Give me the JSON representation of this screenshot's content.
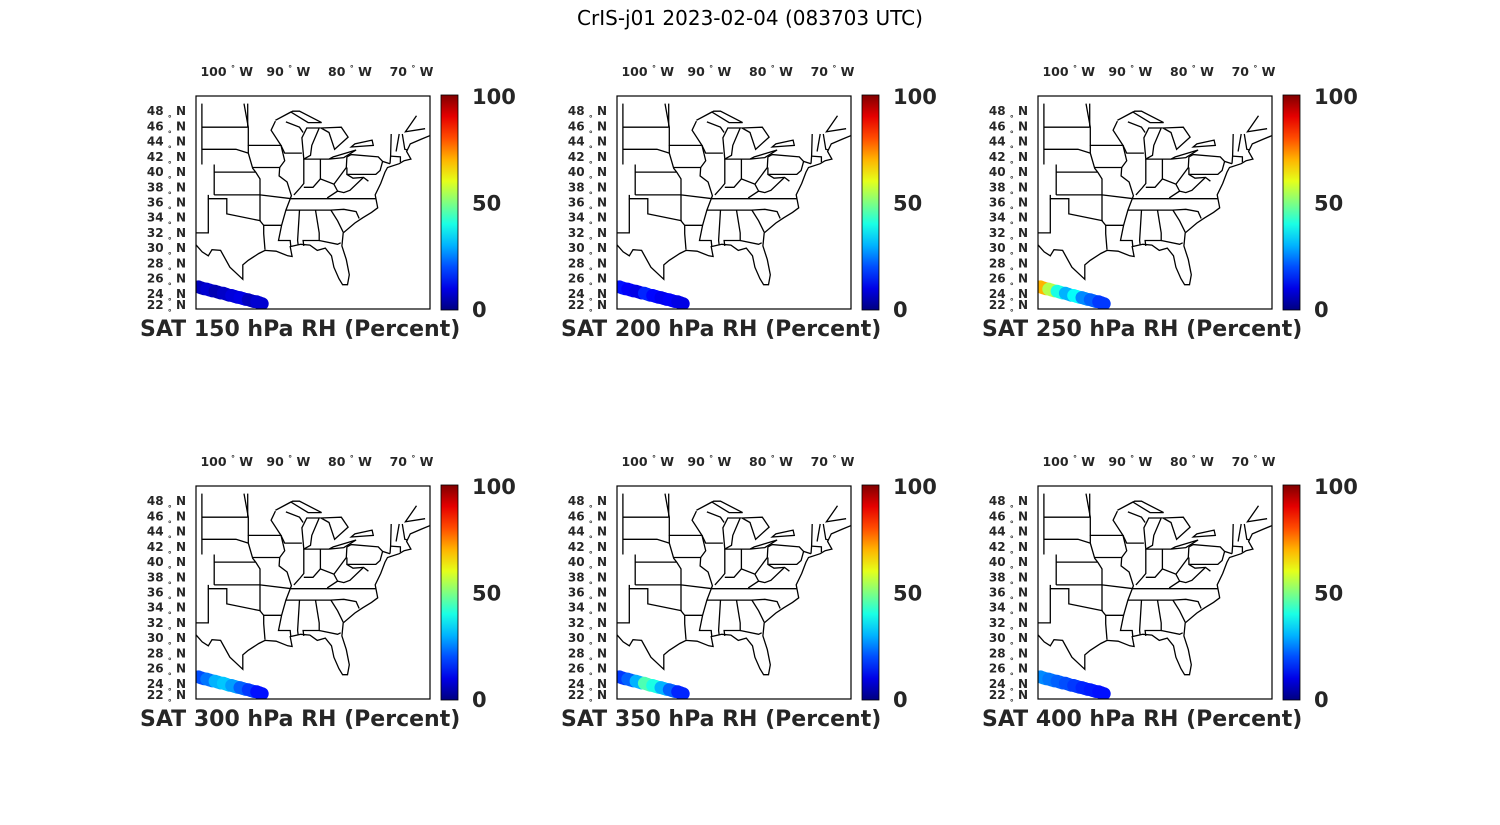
{
  "title": "CrIS-j01 2023-02-04 (083703 UTC)",
  "map": {
    "lon_ticks": [
      {
        "value": -100,
        "num": "100",
        "hemi": "W"
      },
      {
        "value": -90,
        "num": "90",
        "hemi": "W"
      },
      {
        "value": -80,
        "num": "80",
        "hemi": "W"
      },
      {
        "value": -70,
        "num": "70",
        "hemi": "W"
      }
    ],
    "lat_ticks": [
      {
        "value": 48,
        "num": "48",
        "hemi": "N"
      },
      {
        "value": 46,
        "num": "46",
        "hemi": "N"
      },
      {
        "value": 44,
        "num": "44",
        "hemi": "N"
      },
      {
        "value": 42,
        "num": "42",
        "hemi": "N"
      },
      {
        "value": 40,
        "num": "40",
        "hemi": "N"
      },
      {
        "value": 38,
        "num": "38",
        "hemi": "N"
      },
      {
        "value": 36,
        "num": "36",
        "hemi": "N"
      },
      {
        "value": 34,
        "num": "34",
        "hemi": "N"
      },
      {
        "value": 32,
        "num": "32",
        "hemi": "N"
      },
      {
        "value": 30,
        "num": "30",
        "hemi": "N"
      },
      {
        "value": 28,
        "num": "28",
        "hemi": "N"
      },
      {
        "value": 26,
        "num": "26",
        "hemi": "N"
      },
      {
        "value": 24,
        "num": "24",
        "hemi": "N"
      },
      {
        "value": 22,
        "num": "22",
        "hemi": "N"
      }
    ],
    "extent": {
      "lon_min": -105,
      "lon_max": -67,
      "lat_min": 22,
      "lat_max": 50
    },
    "colormap": "jet"
  },
  "colorbar": {
    "min": 0,
    "max": 100,
    "tick_labels": [
      "100",
      "50",
      "0"
    ]
  },
  "panels": [
    {
      "title": "SAT 150 hPa RH (Percent)",
      "rh": [
        6,
        8,
        5,
        7,
        9,
        10,
        6,
        8
      ]
    },
    {
      "title": "SAT 200 hPa RH (Percent)",
      "rh": [
        14,
        12,
        10,
        16,
        13,
        11,
        12,
        10
      ]
    },
    {
      "title": "SAT 250 hPa RH (Percent)",
      "rh": [
        70,
        55,
        40,
        30,
        38,
        26,
        22,
        18
      ]
    },
    {
      "title": "SAT 300 hPa RH (Percent)",
      "rh": [
        20,
        24,
        30,
        32,
        28,
        22,
        18,
        14
      ]
    },
    {
      "title": "SAT 350 hPa RH (Percent)",
      "rh": [
        18,
        22,
        30,
        45,
        40,
        30,
        22,
        16
      ]
    },
    {
      "title": "SAT 400 hPa RH (Percent)",
      "rh": [
        26,
        24,
        22,
        20,
        18,
        16,
        15,
        14
      ]
    }
  ]
}
